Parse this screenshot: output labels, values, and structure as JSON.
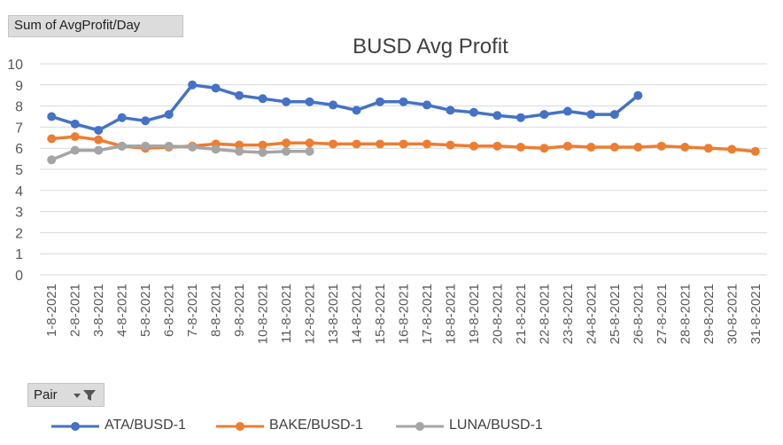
{
  "value_field": {
    "label": "Sum of AvgProfit/Day"
  },
  "pair_field": {
    "label": "Pair",
    "icon": "filter-icon"
  },
  "chart_data": {
    "type": "line",
    "title": "BUSD Avg Profit",
    "xlabel": "",
    "ylabel": "",
    "ylim": [
      0,
      10
    ],
    "yticks": [
      0,
      1,
      2,
      3,
      4,
      5,
      6,
      7,
      8,
      9,
      10
    ],
    "grid": true,
    "legend_position": "bottom",
    "categories": [
      "1-8-2021",
      "2-8-2021",
      "3-8-2021",
      "4-8-2021",
      "5-8-2021",
      "6-8-2021",
      "7-8-2021",
      "8-8-2021",
      "9-8-2021",
      "10-8-2021",
      "11-8-2021",
      "12-8-2021",
      "13-8-2021",
      "14-8-2021",
      "15-8-2021",
      "16-8-2021",
      "17-8-2021",
      "18-8-2021",
      "19-8-2021",
      "20-8-2021",
      "21-8-2021",
      "22-8-2021",
      "23-8-2021",
      "24-8-2021",
      "25-8-2021",
      "26-8-2021",
      "27-8-2021",
      "28-8-2021",
      "29-8-2021",
      "30-8-2021",
      "31-8-2021"
    ],
    "series": [
      {
        "name": "ATA/BUSD-1",
        "color": "#4472c4",
        "values": [
          7.5,
          7.15,
          6.85,
          7.45,
          7.3,
          7.6,
          9.0,
          8.85,
          8.5,
          8.35,
          8.2,
          8.2,
          8.05,
          7.8,
          8.2,
          8.2,
          8.05,
          7.8,
          7.7,
          7.55,
          7.45,
          7.6,
          7.75,
          7.6,
          7.6,
          8.5,
          null,
          null,
          null,
          null,
          null
        ]
      },
      {
        "name": "BAKE/BUSD-1",
        "color": "#ed7d31",
        "values": [
          6.45,
          6.55,
          6.4,
          6.1,
          6.0,
          6.05,
          6.1,
          6.2,
          6.15,
          6.15,
          6.25,
          6.25,
          6.2,
          6.2,
          6.2,
          6.2,
          6.2,
          6.15,
          6.1,
          6.1,
          6.05,
          6.0,
          6.1,
          6.05,
          6.05,
          6.05,
          6.1,
          6.05,
          6.0,
          5.95,
          5.85
        ]
      },
      {
        "name": "LUNA/BUSD-1",
        "color": "#a5a5a5",
        "values": [
          5.45,
          5.9,
          5.9,
          6.1,
          6.1,
          6.1,
          6.05,
          5.95,
          5.85,
          5.8,
          5.85,
          5.85,
          null,
          null,
          null,
          null,
          null,
          null,
          null,
          null,
          null,
          null,
          null,
          null,
          null,
          null,
          null,
          null,
          null,
          null,
          null
        ]
      }
    ]
  }
}
